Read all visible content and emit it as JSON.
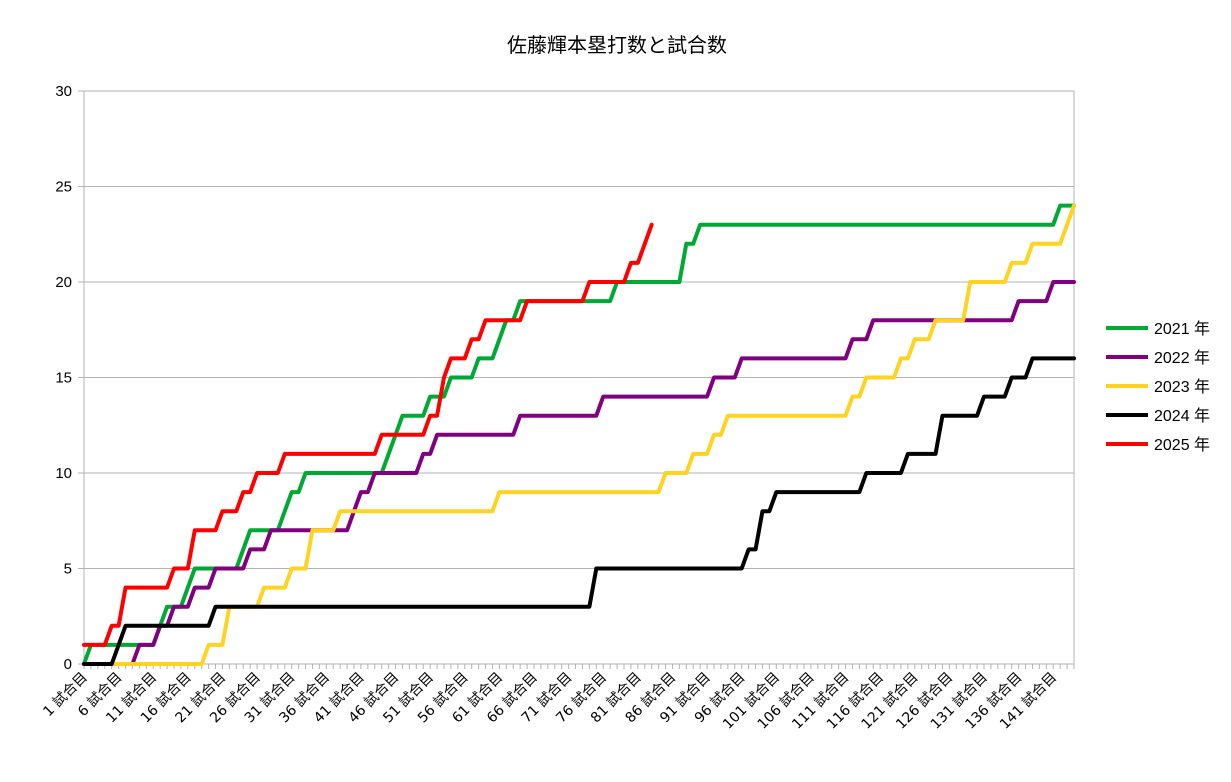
{
  "chart_data": {
    "type": "line",
    "title": "佐藤輝本塁打数と試合数",
    "xlabel": "",
    "ylabel": "",
    "ylim": [
      0,
      30
    ],
    "yticks": [
      "0",
      "5",
      "10",
      "15",
      "20",
      "25",
      "30"
    ],
    "x_count": 144,
    "x_tick_labels": [
      "1 試合目",
      "6 試合目",
      "11 試合目",
      "16 試合目",
      "21 試合目",
      "26 試合目",
      "31 試合目",
      "36 試合目",
      "41 試合目",
      "46 試合目",
      "51 試合目",
      "56 試合目",
      "61 試合目",
      "66 試合目",
      "71 試合目",
      "76 試合目",
      "81 試合目",
      "86 試合目",
      "91 試合目",
      "96 試合目",
      "101 試合目",
      "106 試合目",
      "111 試合目",
      "116 試合目",
      "121 試合目",
      "126 試合目",
      "131 試合目",
      "136 試合目",
      "141 試合目"
    ],
    "grid": true,
    "legend_position": "right",
    "series": [
      {
        "name": "2021 年",
        "color": "#00a933",
        "steps": [
          [
            1,
            0
          ],
          [
            2,
            1
          ],
          [
            12,
            2
          ],
          [
            13,
            3
          ],
          [
            16,
            4
          ],
          [
            17,
            5
          ],
          [
            24,
            6
          ],
          [
            25,
            7
          ],
          [
            30,
            8
          ],
          [
            31,
            9
          ],
          [
            33,
            10
          ],
          [
            45,
            11
          ],
          [
            46,
            12
          ],
          [
            47,
            13
          ],
          [
            51,
            14
          ],
          [
            54,
            15
          ],
          [
            58,
            16
          ],
          [
            61,
            17
          ],
          [
            62,
            18
          ],
          [
            64,
            19
          ],
          [
            78,
            20
          ],
          [
            88,
            22
          ],
          [
            90,
            23
          ],
          [
            142,
            24
          ],
          [
            144,
            24
          ]
        ]
      },
      {
        "name": "2022 年",
        "color": "#800080",
        "steps": [
          [
            1,
            0
          ],
          [
            9,
            1
          ],
          [
            12,
            2
          ],
          [
            14,
            3
          ],
          [
            17,
            4
          ],
          [
            20,
            5
          ],
          [
            25,
            6
          ],
          [
            28,
            7
          ],
          [
            40,
            8
          ],
          [
            41,
            9
          ],
          [
            43,
            10
          ],
          [
            50,
            11
          ],
          [
            52,
            12
          ],
          [
            64,
            13
          ],
          [
            76,
            14
          ],
          [
            92,
            15
          ],
          [
            96,
            16
          ],
          [
            112,
            17
          ],
          [
            115,
            18
          ],
          [
            136,
            19
          ],
          [
            141,
            20
          ],
          [
            144,
            20
          ]
        ]
      },
      {
        "name": "2023 年",
        "color": "#ffd320",
        "steps": [
          [
            1,
            0
          ],
          [
            19,
            1
          ],
          [
            22,
            3
          ],
          [
            27,
            4
          ],
          [
            31,
            5
          ],
          [
            34,
            7
          ],
          [
            38,
            8
          ],
          [
            61,
            9
          ],
          [
            85,
            10
          ],
          [
            89,
            11
          ],
          [
            92,
            12
          ],
          [
            94,
            13
          ],
          [
            112,
            14
          ],
          [
            114,
            15
          ],
          [
            119,
            16
          ],
          [
            121,
            17
          ],
          [
            124,
            18
          ],
          [
            129,
            20
          ],
          [
            135,
            21
          ],
          [
            138,
            22
          ],
          [
            143,
            23
          ],
          [
            144,
            24
          ]
        ]
      },
      {
        "name": "2024 年",
        "color": "#000000",
        "steps": [
          [
            1,
            0
          ],
          [
            6,
            1
          ],
          [
            7,
            2
          ],
          [
            20,
            3
          ],
          [
            75,
            5
          ],
          [
            97,
            6
          ],
          [
            99,
            8
          ],
          [
            101,
            9
          ],
          [
            114,
            10
          ],
          [
            120,
            11
          ],
          [
            125,
            13
          ],
          [
            131,
            14
          ],
          [
            135,
            15
          ],
          [
            138,
            16
          ],
          [
            144,
            16
          ]
        ]
      },
      {
        "name": "2025 年",
        "color": "#ff0000",
        "steps": [
          [
            1,
            1
          ],
          [
            5,
            2
          ],
          [
            7,
            4
          ],
          [
            14,
            5
          ],
          [
            17,
            7
          ],
          [
            21,
            8
          ],
          [
            24,
            9
          ],
          [
            26,
            10
          ],
          [
            30,
            11
          ],
          [
            44,
            12
          ],
          [
            51,
            13
          ],
          [
            53,
            15
          ],
          [
            54,
            16
          ],
          [
            57,
            17
          ],
          [
            59,
            18
          ],
          [
            65,
            19
          ],
          [
            74,
            20
          ],
          [
            80,
            21
          ],
          [
            82,
            22
          ],
          [
            83,
            23
          ]
        ]
      }
    ]
  }
}
